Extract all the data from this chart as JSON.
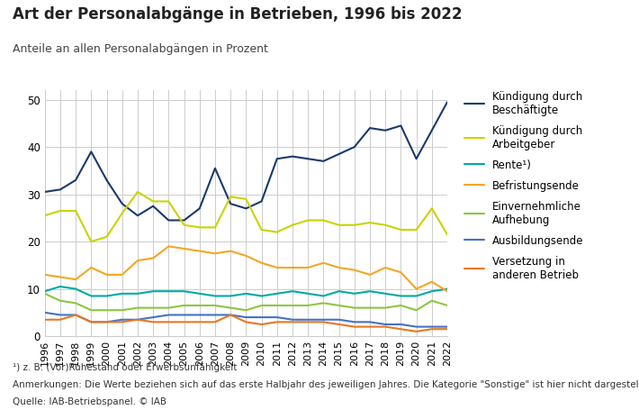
{
  "title": "Art der Personalabgänge in Betrieben, 1996 bis 2022",
  "subtitle": "Anteile an allen Personalabgängen in Prozent",
  "footnote1": "¹) z. B. (Vor)Ruhestand oder Erwerbsunfähigkeit",
  "footnote2": "Anmerkungen: Die Werte beziehen sich auf das erste Halbjahr des jeweiligen Jahres. Die Kategorie \"Sonstige\" ist hier nicht dargestellt.",
  "footnote3": "Quelle: IAB-Betriebspanel. © IAB",
  "years": [
    1996,
    1997,
    1998,
    1999,
    2000,
    2001,
    2002,
    2003,
    2004,
    2005,
    2006,
    2007,
    2008,
    2009,
    2010,
    2011,
    2012,
    2013,
    2014,
    2015,
    2016,
    2017,
    2018,
    2019,
    2020,
    2021,
    2022
  ],
  "series": [
    {
      "label": "Kündigung durch\nBeschäftigte",
      "color": "#1a3a6b",
      "values": [
        30.5,
        31.0,
        33.0,
        39.0,
        33.0,
        28.0,
        25.5,
        27.5,
        24.5,
        24.5,
        27.0,
        35.5,
        28.0,
        27.0,
        28.5,
        37.5,
        38.0,
        37.5,
        37.0,
        38.5,
        40.0,
        44.0,
        43.5,
        44.5,
        37.5,
        43.5,
        49.5
      ]
    },
    {
      "label": "Kündigung durch\nArbeitgeber",
      "color": "#c8d400",
      "values": [
        25.5,
        26.5,
        26.5,
        20.0,
        21.0,
        26.0,
        30.5,
        28.5,
        28.5,
        23.5,
        23.0,
        23.0,
        29.5,
        29.0,
        22.5,
        22.0,
        23.5,
        24.5,
        24.5,
        23.5,
        23.5,
        24.0,
        23.5,
        22.5,
        22.5,
        27.0,
        21.5
      ]
    },
    {
      "label": "Rente¹)",
      "color": "#00a9a5",
      "values": [
        9.5,
        10.5,
        10.0,
        8.5,
        8.5,
        9.0,
        9.0,
        9.5,
        9.5,
        9.5,
        9.0,
        8.5,
        8.5,
        9.0,
        8.5,
        9.0,
        9.5,
        9.0,
        8.5,
        9.5,
        9.0,
        9.5,
        9.0,
        8.5,
        8.5,
        9.5,
        10.0
      ]
    },
    {
      "label": "Befristungsende",
      "color": "#f5a623",
      "values": [
        13.0,
        12.5,
        12.0,
        14.5,
        13.0,
        13.0,
        16.0,
        16.5,
        19.0,
        18.5,
        18.0,
        17.5,
        18.0,
        17.0,
        15.5,
        14.5,
        14.5,
        14.5,
        15.5,
        14.5,
        14.0,
        13.0,
        14.5,
        13.5,
        10.0,
        11.5,
        9.5
      ]
    },
    {
      "label": "Einvernehmliche\nAufhebung",
      "color": "#8dc63f",
      "values": [
        9.0,
        7.5,
        7.0,
        5.5,
        5.5,
        5.5,
        6.0,
        6.0,
        6.0,
        6.5,
        6.5,
        6.5,
        6.0,
        5.5,
        6.5,
        6.5,
        6.5,
        6.5,
        7.0,
        6.5,
        6.0,
        6.0,
        6.0,
        6.5,
        5.5,
        7.5,
        6.5
      ]
    },
    {
      "label": "Ausbildungsende",
      "color": "#4472c4",
      "values": [
        5.0,
        4.5,
        4.5,
        3.0,
        3.0,
        3.5,
        3.5,
        4.0,
        4.5,
        4.5,
        4.5,
        4.5,
        4.5,
        4.0,
        4.0,
        4.0,
        3.5,
        3.5,
        3.5,
        3.5,
        3.0,
        3.0,
        2.5,
        2.5,
        2.0,
        2.0,
        2.0
      ]
    },
    {
      "label": "Versetzung in\nanderen Betrieb",
      "color": "#e87722",
      "values": [
        3.5,
        3.5,
        4.5,
        3.0,
        3.0,
        3.0,
        3.5,
        3.0,
        3.0,
        3.0,
        3.0,
        3.0,
        4.5,
        3.0,
        2.5,
        3.0,
        3.0,
        3.0,
        3.0,
        2.5,
        2.0,
        2.0,
        2.0,
        1.5,
        1.0,
        1.5,
        1.5
      ]
    }
  ],
  "ylim": [
    0,
    52
  ],
  "yticks": [
    0,
    10,
    20,
    30,
    40,
    50
  ],
  "background_color": "#ffffff"
}
